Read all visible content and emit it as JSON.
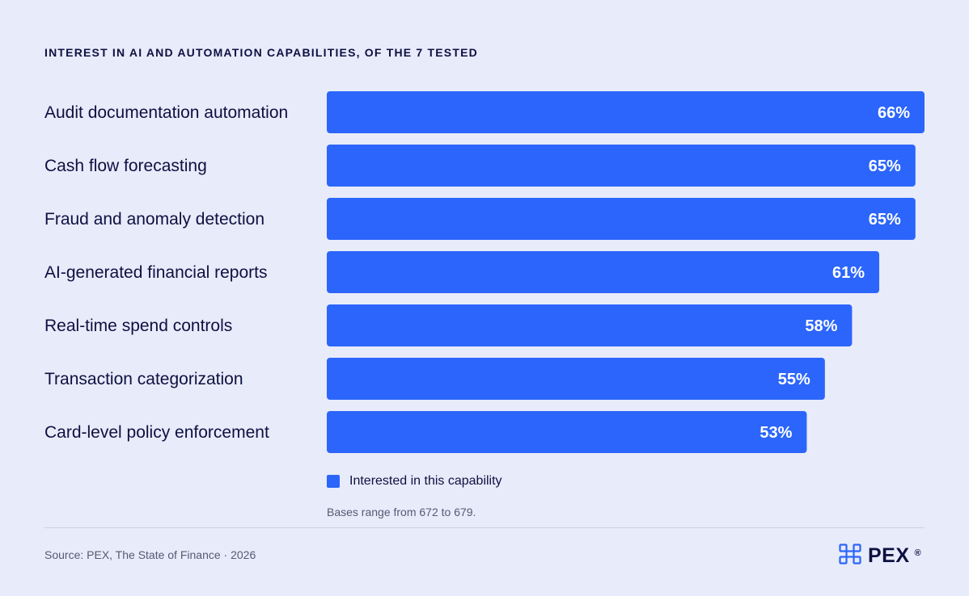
{
  "chart_data": {
    "type": "bar",
    "orientation": "horizontal",
    "title": "INTEREST IN AI AND AUTOMATION CAPABILITIES, OF THE 7 TESTED",
    "categories": [
      "Audit documentation automation",
      "Cash flow forecasting",
      "Fraud and anomaly detection",
      "AI-generated financial reports",
      "Real-time spend controls",
      "Transaction categorization",
      "Card-level policy enforcement"
    ],
    "series": [
      {
        "name": "Interested in this capability",
        "values": [
          66,
          65,
          65,
          61,
          58,
          55,
          53
        ],
        "color": "#2b65fb"
      }
    ],
    "value_labels": [
      "66%",
      "65%",
      "65%",
      "61%",
      "58%",
      "55%",
      "53%"
    ],
    "xlim": [
      0,
      66
    ],
    "grid": false,
    "legend": "bottom"
  },
  "legend": {
    "label": "Interested in this capability"
  },
  "footnote": "Bases range from 672 to 679.",
  "source": "Source: PEX, The State of Finance · 2026",
  "brand": {
    "name": "PEX",
    "registered": "®",
    "logo_icon": "pex-logo-icon"
  },
  "colors": {
    "bar": "#2b65fb",
    "background": "#e8ebfa",
    "text": "#0d1140"
  }
}
